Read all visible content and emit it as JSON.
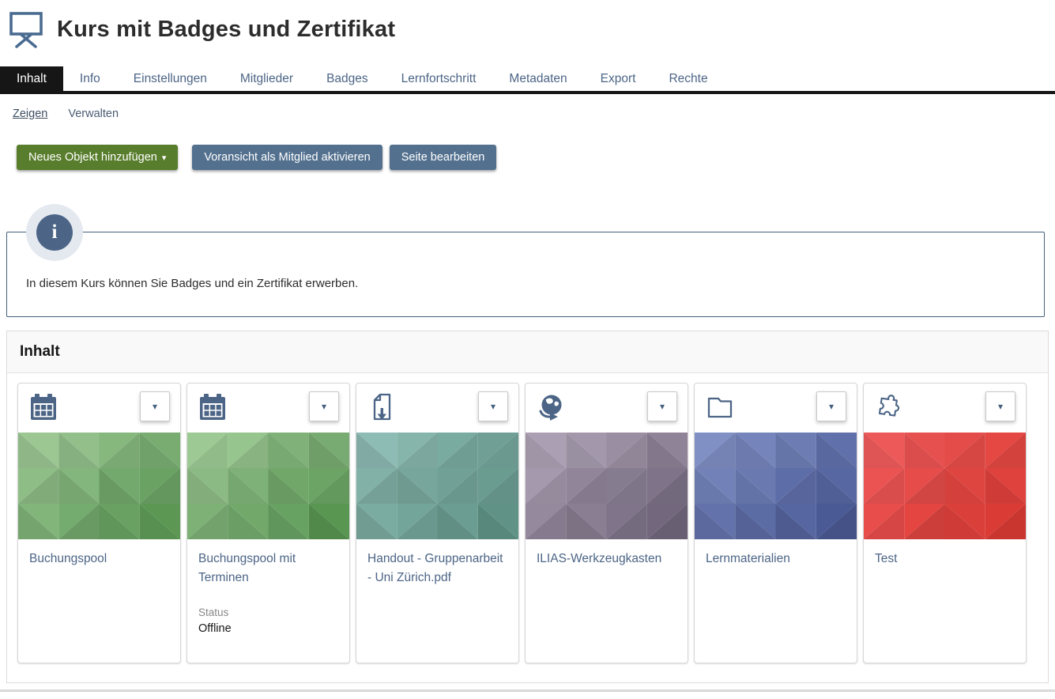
{
  "header": {
    "title": "Kurs mit Badges und Zertifikat",
    "icon": "course-easel-icon"
  },
  "tabs": [
    {
      "label": "Inhalt",
      "active": true
    },
    {
      "label": "Info",
      "active": false
    },
    {
      "label": "Einstellungen",
      "active": false
    },
    {
      "label": "Mitglieder",
      "active": false
    },
    {
      "label": "Badges",
      "active": false
    },
    {
      "label": "Lernfortschritt",
      "active": false
    },
    {
      "label": "Metadaten",
      "active": false
    },
    {
      "label": "Export",
      "active": false
    },
    {
      "label": "Rechte",
      "active": false
    }
  ],
  "subtabs": [
    {
      "label": "Zeigen",
      "active": true
    },
    {
      "label": "Verwalten",
      "active": false
    }
  ],
  "toolbar": {
    "buttons": [
      {
        "label": "Neues Objekt hinzufügen",
        "style": "green",
        "has_caret": true
      },
      {
        "label": "Voransicht als Mitglied aktivieren",
        "style": "slate",
        "has_caret": false
      },
      {
        "label": "Seite bearbeiten",
        "style": "slate",
        "has_caret": false
      }
    ]
  },
  "info_box": {
    "icon": "info-icon",
    "icon_glyph": "i",
    "text": "In diesem Kurs können Sie Badges und ein Zertifikat erwerben."
  },
  "content_panel": {
    "title": "Inhalt",
    "cards": [
      {
        "title": "Buchungspool",
        "icon": "booking-pool-calendar-icon",
        "tile_color_from": "#96bf8e",
        "tile_color_to": "#55904f"
      },
      {
        "title": "Buchungspool mit Terminen",
        "icon": "booking-pool-calendar-icon",
        "tile_color_from": "#96bf8e",
        "tile_color_to": "#55904f",
        "status_label": "Status",
        "status_value": "Offline"
      },
      {
        "title": "Handout - Gruppenarbeit - Uni Zürich.pdf",
        "icon": "file-download-icon",
        "tile_color_from": "#84b0a8",
        "tile_color_to": "#5b8b7f"
      },
      {
        "title": "ILIAS-Werkzeugkasten",
        "icon": "weblink-globe-icon",
        "tile_color_from": "#a59bad",
        "tile_color_to": "#6d6277"
      },
      {
        "title": "Lernmaterialien",
        "icon": "folder-icon",
        "tile_color_from": "#7685b8",
        "tile_color_to": "#47568f"
      },
      {
        "title": "Test",
        "icon": "puzzle-icon",
        "tile_color_from": "#e45555",
        "tile_color_to": "#cf3731"
      }
    ],
    "dropdown_caret": "▾"
  },
  "colors": {
    "accent_link": "#4c6586",
    "tab_active_bg": "#161616",
    "button_green": "#587d2c",
    "button_slate": "#53718f",
    "info_border": "#44617f",
    "panel_header_bg": "#f9f9f9",
    "icon_blue": "#4c6586"
  }
}
